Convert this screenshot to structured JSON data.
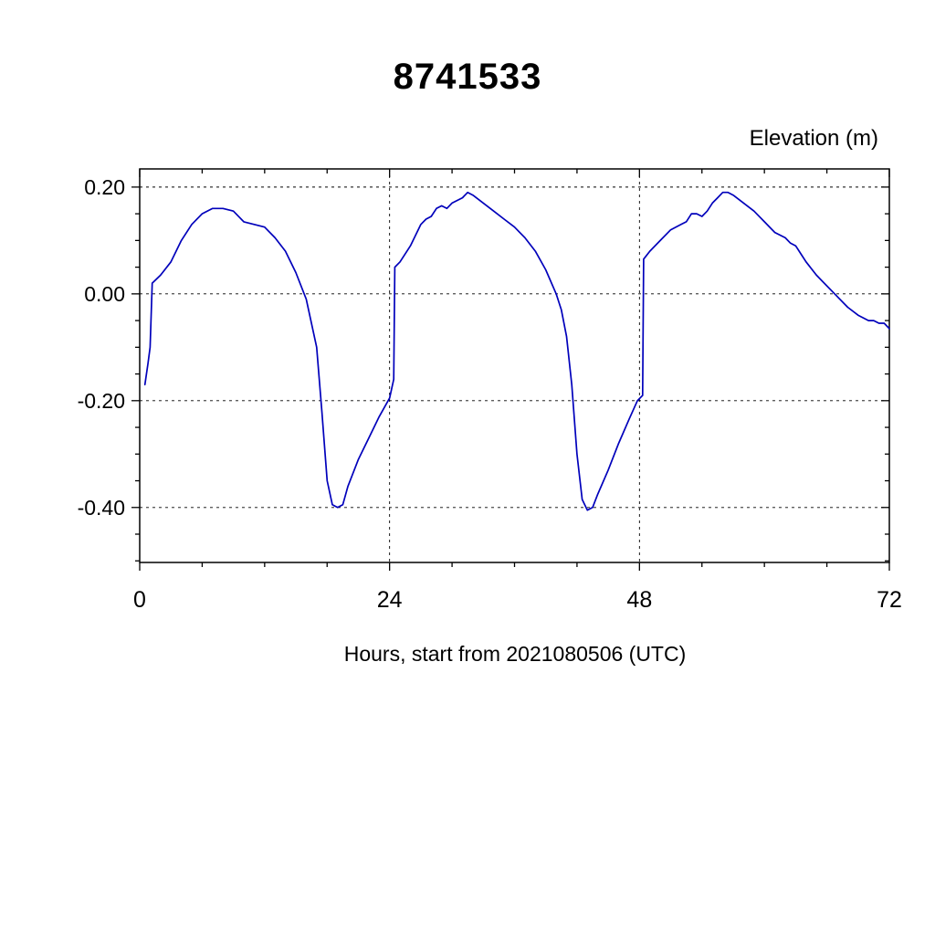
{
  "title": "8741533",
  "chart_data": {
    "type": "line",
    "title": "8741533",
    "ylabel": "Elevation (m)",
    "xlabel": "Hours, start from 2021080506 (UTC)",
    "xlim": [
      0,
      72
    ],
    "ylim": [
      -0.503,
      0.234
    ],
    "x_major_ticks": [
      0,
      24,
      48,
      72
    ],
    "x_minor_step": 6,
    "y_major_ticks": [
      0.2,
      0.0,
      -0.2,
      -0.4
    ],
    "y_minor_step": 0.05,
    "grid": true,
    "legend_position": "none",
    "line_color": "#0000bb",
    "series": [
      {
        "name": "elevation",
        "points": [
          [
            0.5,
            -0.17
          ],
          [
            0.8,
            -0.13
          ],
          [
            1.0,
            -0.1
          ],
          [
            1.2,
            0.02
          ],
          [
            2,
            0.035
          ],
          [
            3,
            0.06
          ],
          [
            4,
            0.1
          ],
          [
            5,
            0.13
          ],
          [
            6,
            0.15
          ],
          [
            7,
            0.16
          ],
          [
            8,
            0.16
          ],
          [
            9,
            0.155
          ],
          [
            10,
            0.135
          ],
          [
            11,
            0.13
          ],
          [
            12,
            0.125
          ],
          [
            13,
            0.105
          ],
          [
            14,
            0.08
          ],
          [
            15,
            0.04
          ],
          [
            16,
            -0.01
          ],
          [
            17,
            -0.1
          ],
          [
            17.5,
            -0.22
          ],
          [
            18,
            -0.35
          ],
          [
            18.5,
            -0.395
          ],
          [
            19,
            -0.4
          ],
          [
            19.5,
            -0.395
          ],
          [
            20,
            -0.36
          ],
          [
            21,
            -0.31
          ],
          [
            22,
            -0.27
          ],
          [
            23,
            -0.23
          ],
          [
            24,
            -0.195
          ],
          [
            24.4,
            -0.16
          ],
          [
            24.5,
            0.05
          ],
          [
            25,
            0.06
          ],
          [
            26,
            0.09
          ],
          [
            26.5,
            0.11
          ],
          [
            27,
            0.13
          ],
          [
            27.5,
            0.14
          ],
          [
            28,
            0.145
          ],
          [
            28.5,
            0.16
          ],
          [
            29,
            0.165
          ],
          [
            29.5,
            0.16
          ],
          [
            30,
            0.17
          ],
          [
            31,
            0.18
          ],
          [
            31.5,
            0.19
          ],
          [
            32,
            0.185
          ],
          [
            33,
            0.17
          ],
          [
            34,
            0.155
          ],
          [
            35,
            0.14
          ],
          [
            36,
            0.125
          ],
          [
            37,
            0.105
          ],
          [
            38,
            0.08
          ],
          [
            39,
            0.045
          ],
          [
            40,
            0.0
          ],
          [
            40.5,
            -0.03
          ],
          [
            41,
            -0.08
          ],
          [
            41.5,
            -0.17
          ],
          [
            42,
            -0.3
          ],
          [
            42.5,
            -0.385
          ],
          [
            43,
            -0.405
          ],
          [
            43.5,
            -0.4
          ],
          [
            44,
            -0.375
          ],
          [
            45,
            -0.33
          ],
          [
            46,
            -0.28
          ],
          [
            47,
            -0.235
          ],
          [
            47.8,
            -0.2
          ],
          [
            48.3,
            -0.19
          ],
          [
            48.4,
            0.065
          ],
          [
            49,
            0.08
          ],
          [
            50,
            0.1
          ],
          [
            51,
            0.12
          ],
          [
            52,
            0.13
          ],
          [
            52.5,
            0.135
          ],
          [
            53,
            0.15
          ],
          [
            53.5,
            0.15
          ],
          [
            54,
            0.145
          ],
          [
            54.5,
            0.155
          ],
          [
            55,
            0.17
          ],
          [
            55.5,
            0.18
          ],
          [
            56,
            0.19
          ],
          [
            56.5,
            0.19
          ],
          [
            57,
            0.185
          ],
          [
            58,
            0.17
          ],
          [
            59,
            0.155
          ],
          [
            60,
            0.135
          ],
          [
            61,
            0.115
          ],
          [
            61.5,
            0.11
          ],
          [
            62,
            0.105
          ],
          [
            62.5,
            0.095
          ],
          [
            63,
            0.09
          ],
          [
            63.5,
            0.075
          ],
          [
            64,
            0.06
          ],
          [
            65,
            0.035
          ],
          [
            66,
            0.015
          ],
          [
            67,
            -0.005
          ],
          [
            68,
            -0.025
          ],
          [
            69,
            -0.04
          ],
          [
            70,
            -0.05
          ],
          [
            70.5,
            -0.05
          ],
          [
            71,
            -0.055
          ],
          [
            71.5,
            -0.055
          ],
          [
            72,
            -0.065
          ]
        ]
      }
    ]
  }
}
